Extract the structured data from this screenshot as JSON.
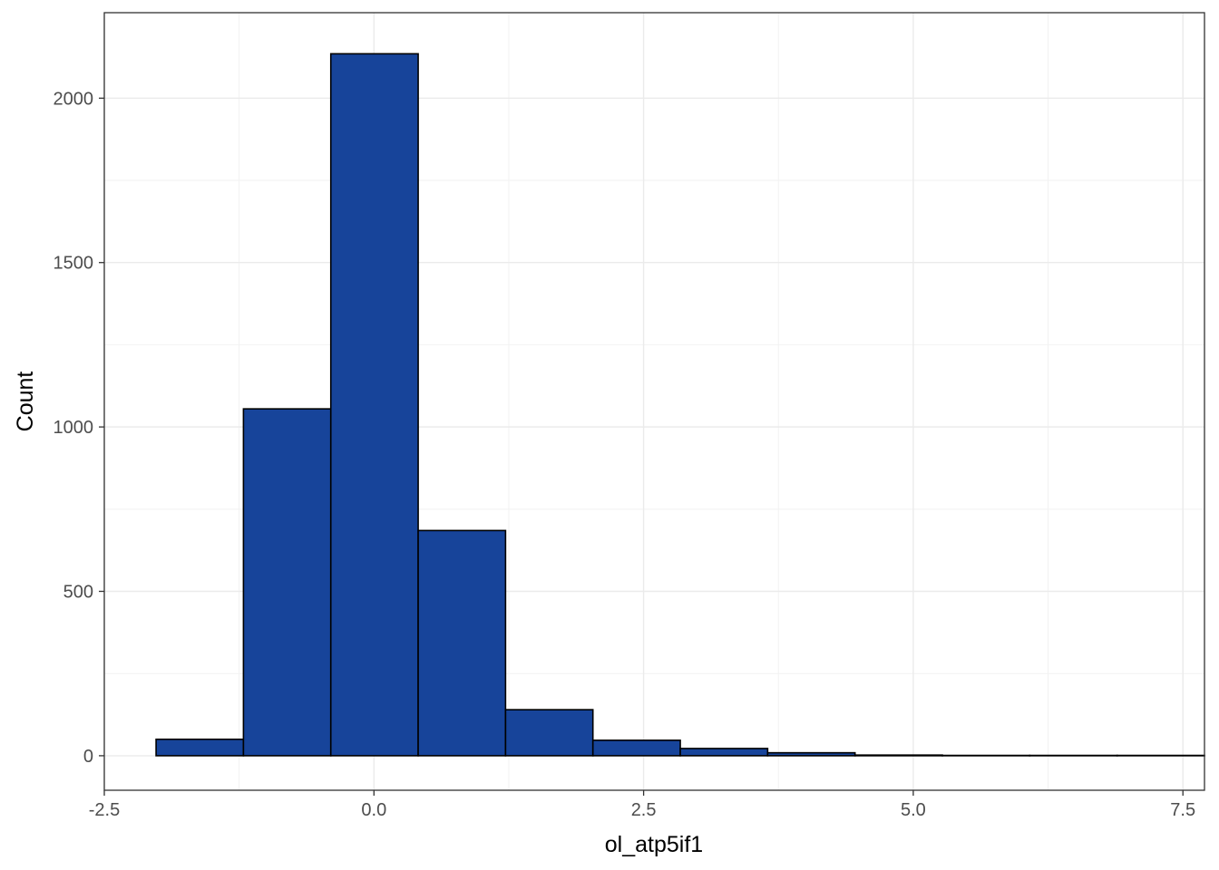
{
  "chart_data": {
    "type": "bar",
    "subtype": "histogram",
    "xlabel": "ol_atp5if1",
    "ylabel": "Count",
    "xlim": [
      -2.5,
      8.0
    ],
    "ylim": [
      -105,
      2260
    ],
    "x_ticks": [
      -2.5,
      0.0,
      2.5,
      5.0,
      7.5
    ],
    "x_tick_labels": [
      "-2.5",
      "0.0",
      "2.5",
      "5.0",
      "7.5"
    ],
    "y_ticks": [
      0,
      500,
      1000,
      1500,
      2000
    ],
    "y_tick_labels": [
      "0",
      "500",
      "1000",
      "1500",
      "2000"
    ],
    "bins": [
      {
        "x0": -2.02,
        "x1": -1.21,
        "count": 50
      },
      {
        "x0": -1.21,
        "x1": -0.4,
        "count": 1055
      },
      {
        "x0": -0.4,
        "x1": 0.41,
        "count": 2135
      },
      {
        "x0": 0.41,
        "x1": 1.22,
        "count": 685
      },
      {
        "x0": 1.22,
        "x1": 2.03,
        "count": 140
      },
      {
        "x0": 2.03,
        "x1": 2.84,
        "count": 47
      },
      {
        "x0": 2.84,
        "x1": 3.65,
        "count": 22
      },
      {
        "x0": 3.65,
        "x1": 4.46,
        "count": 9
      },
      {
        "x0": 4.46,
        "x1": 5.27,
        "count": 2
      },
      {
        "x0": 5.27,
        "x1": 6.08,
        "count": 1
      },
      {
        "x0": 6.08,
        "x1": 6.89,
        "count": 1
      },
      {
        "x0": 6.89,
        "x1": 7.7,
        "count": 1
      }
    ],
    "grid": true,
    "legend": "none",
    "colors": {
      "bar_fill": "#17449a",
      "bar_stroke": "#000000",
      "panel_border": "#333333",
      "grid_major": "#ebebeb",
      "grid_minor": "#f2f2f2"
    }
  }
}
